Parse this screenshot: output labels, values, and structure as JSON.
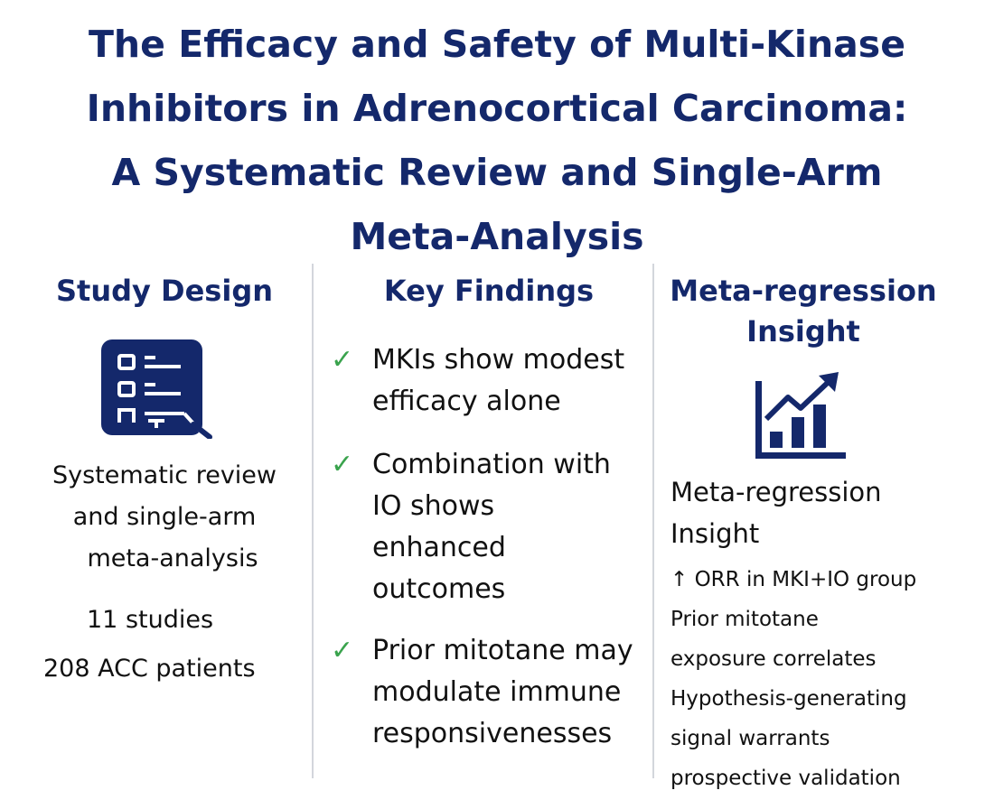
{
  "title": {
    "lines": [
      "The Efficacy and Safety of Multi-Kinase",
      "Inhibitors in Adrenocortical Carcinoma:",
      "A Systematic Review and Single-Arm",
      "Meta-Analysis"
    ]
  },
  "colors": {
    "navy": "#14286b",
    "check": "#3aa34d",
    "divider": "#d3d6dc"
  },
  "study_design": {
    "heading": "Study Design",
    "icon": "checklist-search-icon",
    "description_lines": [
      "Systematic review",
      "and single-arm",
      "meta-analysis"
    ],
    "studies": "11 studies",
    "patients": "208 ACC patients"
  },
  "key_findings": {
    "heading": "Key Findings",
    "check_symbol": "✓",
    "items": [
      {
        "lines": [
          "MKIs show modest",
          "efficacy alone"
        ]
      },
      {
        "lines": [
          "Combination with",
          "IO shows",
          "enhanced",
          "outcomes"
        ]
      },
      {
        "lines": [
          "Prior mitotane may",
          "modulate immune",
          "responsivenesses"
        ]
      }
    ]
  },
  "insight": {
    "heading_lines": [
      "Meta-regression",
      "Insight"
    ],
    "icon": "bar-chart-trend-icon",
    "subheading_lines": [
      "Meta-regression",
      "Insight"
    ],
    "lines": [
      "↑ ORR in MKI+IO group",
      "Prior mitotane",
      "exposure correlates",
      "Hypothesis-generating",
      "signal warrants",
      "prospective validation"
    ]
  }
}
